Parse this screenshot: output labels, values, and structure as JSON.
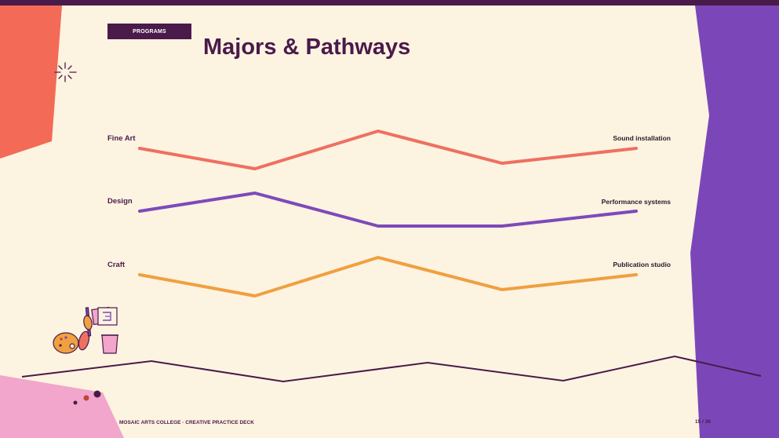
{
  "slide": {
    "badge": "PROGRAMS",
    "title": "Majors & Pathways",
    "footer": "MOSAIC ARTS COLLEGE · CREATIVE PRACTICE DECK",
    "page": "15 / 38"
  },
  "pathways": [
    {
      "name": "Fine Art",
      "destination": "Sound installation",
      "color": "#ee7060"
    },
    {
      "name": "Design",
      "destination": "Performance systems",
      "color": "#7d4ab9"
    },
    {
      "name": "Craft",
      "destination": "Publication studio",
      "color": "#f0a040"
    }
  ],
  "colors": {
    "dark_plum": "#4a1a4a",
    "coral": "#f36b56",
    "purple": "#7b47b8",
    "pink": "#f2a6cc",
    "cream": "#fdf3e1"
  },
  "icons": [
    "sparkle-icon",
    "art-supplies-icon"
  ]
}
